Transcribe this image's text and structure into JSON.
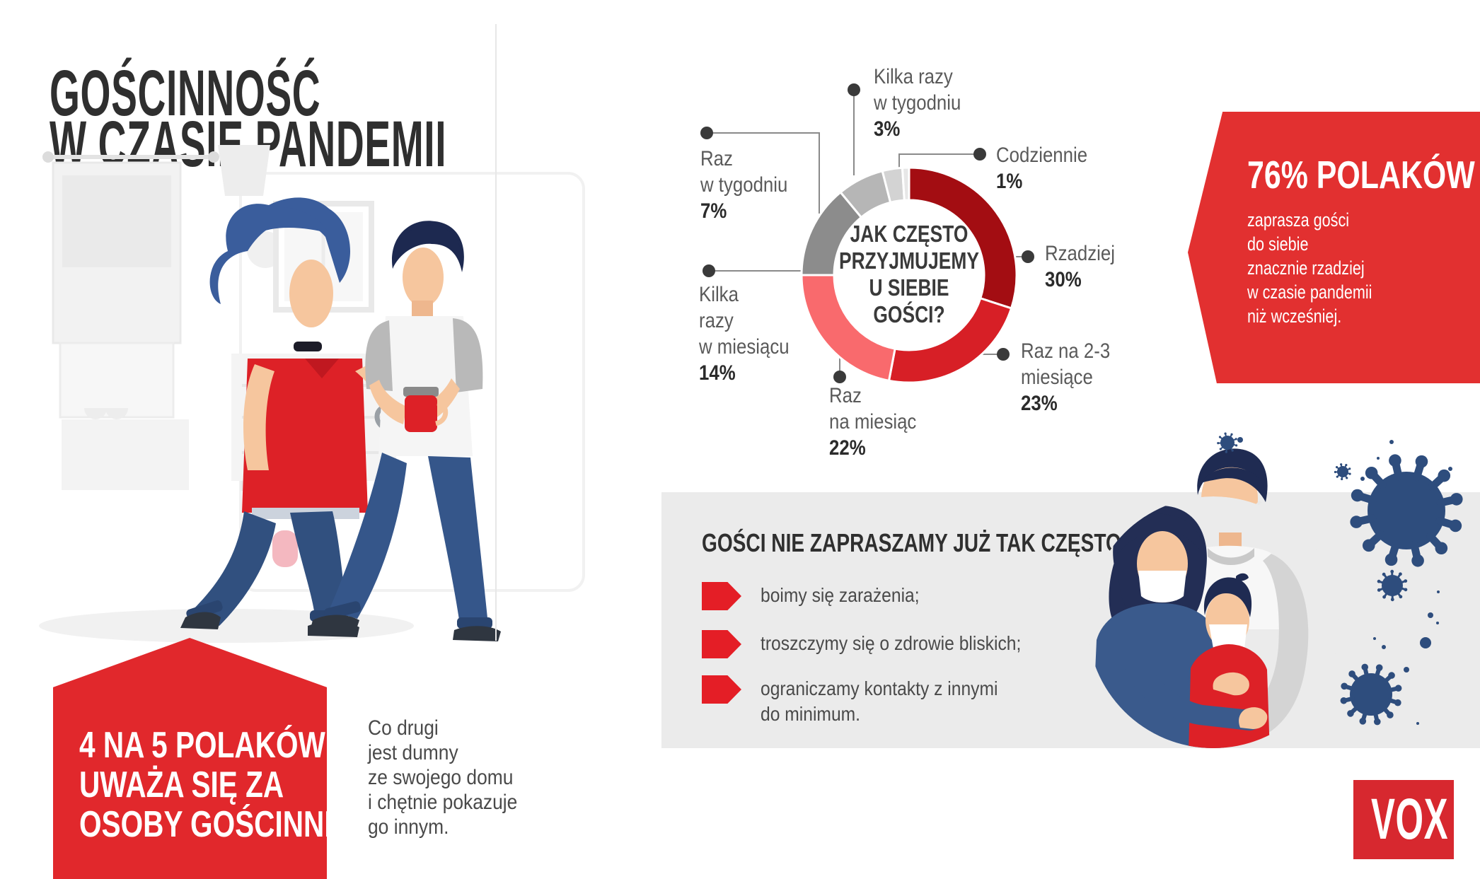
{
  "title": {
    "lines": [
      "GOŚCINNOŚĆ",
      "W CZASIE PANDEMII"
    ]
  },
  "chart_data": {
    "type": "pie",
    "title": "JAK CZĘSTO PRZYJMUJEMY U SIEBIE GOŚCI?",
    "center_lines": [
      "JAK CZĘSTO",
      "PRZYJMUJEMY",
      "U SIEBIE",
      "GOŚCI?"
    ],
    "unit": "%",
    "legend_position": "around",
    "slices": [
      {
        "label": "Rzadziej",
        "label_lines": [
          "Rzadziej"
        ],
        "value": 30,
        "pct": "30%",
        "color": "#a30d12"
      },
      {
        "label": "Raz na 2-3 miesiące",
        "label_lines": [
          "Raz na 2-3",
          "miesiące"
        ],
        "value": 23,
        "pct": "23%",
        "color": "#d71f26"
      },
      {
        "label": "Raz na miesiąc",
        "label_lines": [
          "Raz",
          "na miesiąc"
        ],
        "value": 22,
        "pct": "22%",
        "color": "#f96a6d"
      },
      {
        "label": "Kilka razy w miesiącu",
        "label_lines": [
          "Kilka",
          "razy",
          "w miesiącu"
        ],
        "value": 14,
        "pct": "14%",
        "color": "#8c8c8c"
      },
      {
        "label": "Raz w tygodniu",
        "label_lines": [
          "Raz",
          "w tygodniu"
        ],
        "value": 7,
        "pct": "7%",
        "color": "#b6b6b6"
      },
      {
        "label": "Kilka razy w tygodniu",
        "label_lines": [
          "Kilka razy",
          "w tygodniu"
        ],
        "value": 3,
        "pct": "3%",
        "color": "#d3d3d3"
      },
      {
        "label": "Codziennie",
        "label_lines": [
          "Codziennie"
        ],
        "value": 1,
        "pct": "1%",
        "color": "#e7e7e7"
      }
    ]
  },
  "ribbon": {
    "headline": "76% POLAKÓW",
    "lines": [
      "zaprasza gości",
      "do siebie",
      "znacznie rzadziej",
      "w czasie pandemii",
      "niż wcześniej."
    ],
    "bg": "#e23030"
  },
  "pentagon": {
    "lines": [
      "4 NA 5 POLAKÓW",
      "UWAŻA SIĘ ZA",
      "OSOBY GOŚCINNE."
    ],
    "bg": "#e1282c"
  },
  "proud_note": {
    "lines": [
      "Co drugi",
      "jest dumny",
      "ze swojego domu",
      "i chętnie pokazuje",
      "go innym."
    ]
  },
  "reasons": {
    "heading": "GOŚCI NIE ZAPRASZAMY JUŻ TAK CZĘSTO, BO...",
    "items": [
      {
        "lines": [
          "boimy się zarażenia;",
          ""
        ]
      },
      {
        "lines": [
          "troszczymy się o zdrowie bliskich;",
          ""
        ]
      },
      {
        "lines": [
          "ograniczamy kontakty z innymi",
          "do minimum."
        ]
      }
    ],
    "bullet_color": "#e41e26",
    "bg": "#ebebeb"
  },
  "logo": {
    "text": "VOX",
    "bg": "#d7282f"
  },
  "colors": {
    "accent_red": "#e1282c",
    "dark_red": "#a30d12",
    "virus_navy": "#2e4d7d",
    "text_dark": "#2f2f2f",
    "text_gray": "#5a5a5a"
  },
  "icons": {
    "virus-icon": "coronavirus blob with spikes",
    "bullet-arrow-icon": "red pentagon arrow pointing right"
  }
}
